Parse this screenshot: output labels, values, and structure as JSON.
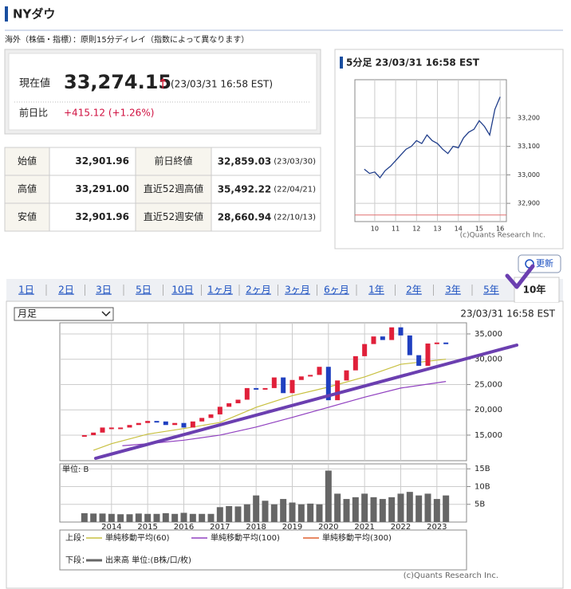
{
  "header": {
    "title": "NYダウ",
    "note": "海外（株価・指標）：原則15分ディレイ（指数によって異なります）"
  },
  "quote": {
    "price_label": "現在値",
    "price": "33,274.15",
    "arrow": "↑",
    "time": "(23/03/31 16:58 EST)",
    "change_label": "前日比",
    "change": "+415.12 (+1.26%)"
  },
  "table": {
    "rows": [
      [
        "始値",
        "32,901.96",
        "前日終値",
        "32,859.03",
        "(23/03/30)"
      ],
      [
        "高値",
        "33,291.00",
        "直近52週高値",
        "35,492.22",
        "(22/04/21)"
      ],
      [
        "安値",
        "32,901.96",
        "直近52週安値",
        "28,660.94",
        "(22/10/13)"
      ]
    ]
  },
  "intraday": {
    "type": "line",
    "title": "5分足 23/03/31 16:58 EST",
    "color": "#1f3d8a",
    "x": [
      9.5,
      9.75,
      10,
      10.25,
      10.5,
      10.75,
      11,
      11.25,
      11.5,
      11.75,
      12,
      12.25,
      12.5,
      12.75,
      13,
      13.25,
      13.5,
      13.75,
      14,
      14.25,
      14.5,
      14.75,
      15,
      15.25,
      15.5,
      15.75,
      16
    ],
    "values": [
      33020,
      33005,
      33010,
      32990,
      33015,
      33030,
      33050,
      33070,
      33090,
      33100,
      33120,
      33110,
      33140,
      33120,
      33110,
      33090,
      33075,
      33100,
      33095,
      33130,
      33150,
      33160,
      33190,
      33170,
      33140,
      33230,
      33274
    ],
    "xlim": [
      9.05,
      16.3
    ],
    "xticks": [
      10,
      11,
      12,
      13,
      14,
      15,
      16
    ],
    "ylim": [
      32836,
      33334
    ],
    "yticks": [
      {
        "value": 32900,
        "label": "32,900"
      },
      {
        "value": 33000,
        "label": "33,000"
      },
      {
        "value": 33100,
        "label": "33,100"
      },
      {
        "value": 33200,
        "label": "33,200"
      }
    ],
    "reference_line": 32859.03,
    "reference_color": "#e07070",
    "grid": true,
    "copyright": "(c)Quants Research Inc."
  },
  "update_button": "更新",
  "tabs": {
    "items": [
      "1日",
      "2日",
      "3日",
      "5日",
      "10日",
      "1ヶ月",
      "2ヶ月",
      "3ヶ月",
      "6ヶ月",
      "1年",
      "2年",
      "3年",
      "5年",
      "10年"
    ],
    "active": 13
  },
  "main": {
    "select": "月足",
    "timestamp": "23/03/31 16:58 EST",
    "xlim": [
      2012.57,
      2023.82
    ],
    "xticks": [
      2014,
      2015,
      2016,
      2017,
      2018,
      2019,
      2020,
      2021,
      2022,
      2023
    ],
    "price_chart": {
      "type": "candlestick",
      "up_color": "#e0203a",
      "down_color": "#2040c0",
      "x": [
        2013.25,
        2013.5,
        2013.75,
        2014,
        2014.25,
        2014.5,
        2014.75,
        2015,
        2015.25,
        2015.5,
        2015.75,
        2016,
        2016.25,
        2016.5,
        2016.75,
        2017,
        2017.25,
        2017.5,
        2017.75,
        2018,
        2018.25,
        2018.5,
        2018.75,
        2019,
        2019.25,
        2019.5,
        2019.75,
        2020,
        2020.25,
        2020.5,
        2020.75,
        2021,
        2021.25,
        2021.5,
        2021.75,
        2022,
        2022.25,
        2022.5,
        2022.75,
        2023,
        2023.25
      ],
      "values": [
        15000,
        15500,
        16500,
        16500,
        16500,
        17000,
        17400,
        17800,
        17700,
        17000,
        17400,
        16500,
        17700,
        18400,
        19100,
        20600,
        21300,
        22000,
        24300,
        24100,
        24300,
        26400,
        23300,
        25900,
        26600,
        26900,
        28500,
        21900,
        25800,
        27800,
        30600,
        33000,
        34500,
        33800,
        36300,
        34700,
        30800,
        28700,
        33100,
        33300,
        33274
      ],
      "ylim": [
        9950,
        37200
      ],
      "yticks": [
        {
          "value": 15000,
          "label": "15,000"
        },
        {
          "value": 20000,
          "label": "20,000"
        },
        {
          "value": 25000,
          "label": "25,000"
        },
        {
          "value": 30000,
          "label": "30,000"
        },
        {
          "value": 35000,
          "label": "35,000"
        }
      ],
      "moving_averages": [
        {
          "x": [
            2013.5,
            2014,
            2015,
            2016,
            2017,
            2018,
            2019,
            2020,
            2021,
            2022,
            2023.25
          ],
          "values": [
            12000,
            13300,
            15200,
            16300,
            17500,
            20500,
            22800,
            24500,
            26500,
            29000,
            30000
          ]
        },
        {
          "x": [
            2014.3,
            2015,
            2016,
            2017,
            2018,
            2019,
            2020,
            2021,
            2022,
            2023.25
          ],
          "values": [
            12900,
            13300,
            14000,
            15000,
            16600,
            18500,
            20500,
            22500,
            24300,
            25600
          ]
        }
      ]
    },
    "volume_chart": {
      "type": "bar",
      "unit_label": "単位: B",
      "x": [
        2013.25,
        2013.5,
        2013.75,
        2014,
        2014.25,
        2014.5,
        2014.75,
        2015,
        2015.25,
        2015.5,
        2015.75,
        2016,
        2016.25,
        2016.5,
        2016.75,
        2017,
        2017.25,
        2017.5,
        2017.75,
        2018,
        2018.25,
        2018.5,
        2018.75,
        2019,
        2019.25,
        2019.5,
        2019.75,
        2020,
        2020.25,
        2020.5,
        2020.75,
        2021,
        2021.25,
        2021.5,
        2021.75,
        2022,
        2022.25,
        2022.5,
        2022.75,
        2023,
        2023.25
      ],
      "values": [
        2.5,
        2.4,
        2.4,
        2.3,
        2.2,
        2.2,
        2.4,
        2.3,
        2.3,
        2.5,
        2.3,
        2.6,
        2.3,
        2.3,
        2.3,
        4.2,
        4.5,
        4.4,
        5.0,
        7.5,
        6.0,
        5.0,
        6.5,
        5.5,
        5.0,
        5.2,
        5.0,
        14.5,
        8.0,
        6.5,
        7.0,
        8.0,
        7.0,
        6.5,
        7.0,
        8.0,
        8.5,
        7.5,
        8.0,
        6.5,
        7.5
      ],
      "ylim": [
        0,
        16.4
      ],
      "yticks": [
        {
          "value": 5,
          "label": "5B"
        },
        {
          "value": 10,
          "label": "10B"
        },
        {
          "value": 15,
          "label": "15B"
        }
      ]
    },
    "legend": {
      "upper_label": "上段：",
      "upper": [
        {
          "name": "単純移動平均(60)",
          "color": "#c8c040"
        },
        {
          "name": "単純移動平均(100)",
          "color": "#9040c0"
        },
        {
          "name": "単純移動平均(300)",
          "color": "#e06030"
        }
      ],
      "lower_label": "下段：",
      "lower": {
        "name": "出来高 単位:(B株/口/枚)",
        "color": "#666666"
      }
    },
    "copyright": "(c)Quants Research Inc."
  }
}
